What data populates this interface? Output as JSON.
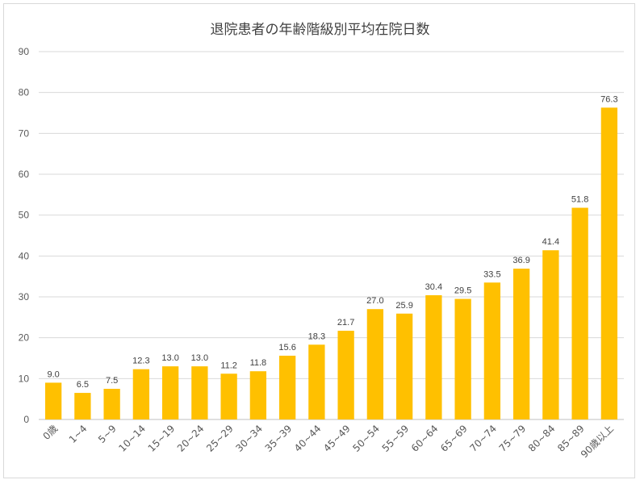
{
  "chart_data": {
    "type": "bar",
    "title": "退院患者の年齢階級別平均在院日数",
    "categories": [
      "0歳",
      "1~4",
      "5~9",
      "10~14",
      "15~19",
      "20~24",
      "25~29",
      "30~34",
      "35~39",
      "40~44",
      "45~49",
      "50~54",
      "55~59",
      "60~64",
      "65~69",
      "70~74",
      "75~79",
      "80~84",
      "85~89",
      "90歳以上"
    ],
    "values": [
      9.0,
      6.5,
      7.5,
      12.3,
      13.0,
      13.0,
      11.2,
      11.8,
      15.6,
      18.3,
      21.7,
      27.0,
      25.9,
      30.4,
      29.5,
      33.5,
      36.9,
      41.4,
      51.8,
      76.3
    ],
    "value_labels": [
      "9.0",
      "6.5",
      "7.5",
      "12.3",
      "13.0",
      "13.0",
      "11.2",
      "11.8",
      "15.6",
      "18.3",
      "21.7",
      "27.0",
      "25.9",
      "30.4",
      "29.5",
      "33.5",
      "36.9",
      "41.4",
      "51.8",
      "76.3"
    ],
    "ylim": [
      0,
      90
    ],
    "yticks": [
      "0",
      "10",
      "20",
      "30",
      "40",
      "50",
      "60",
      "70",
      "80",
      "90"
    ],
    "grid": true,
    "legend": "none",
    "bar_color": "#FFC000",
    "xlabel": "",
    "ylabel": ""
  }
}
